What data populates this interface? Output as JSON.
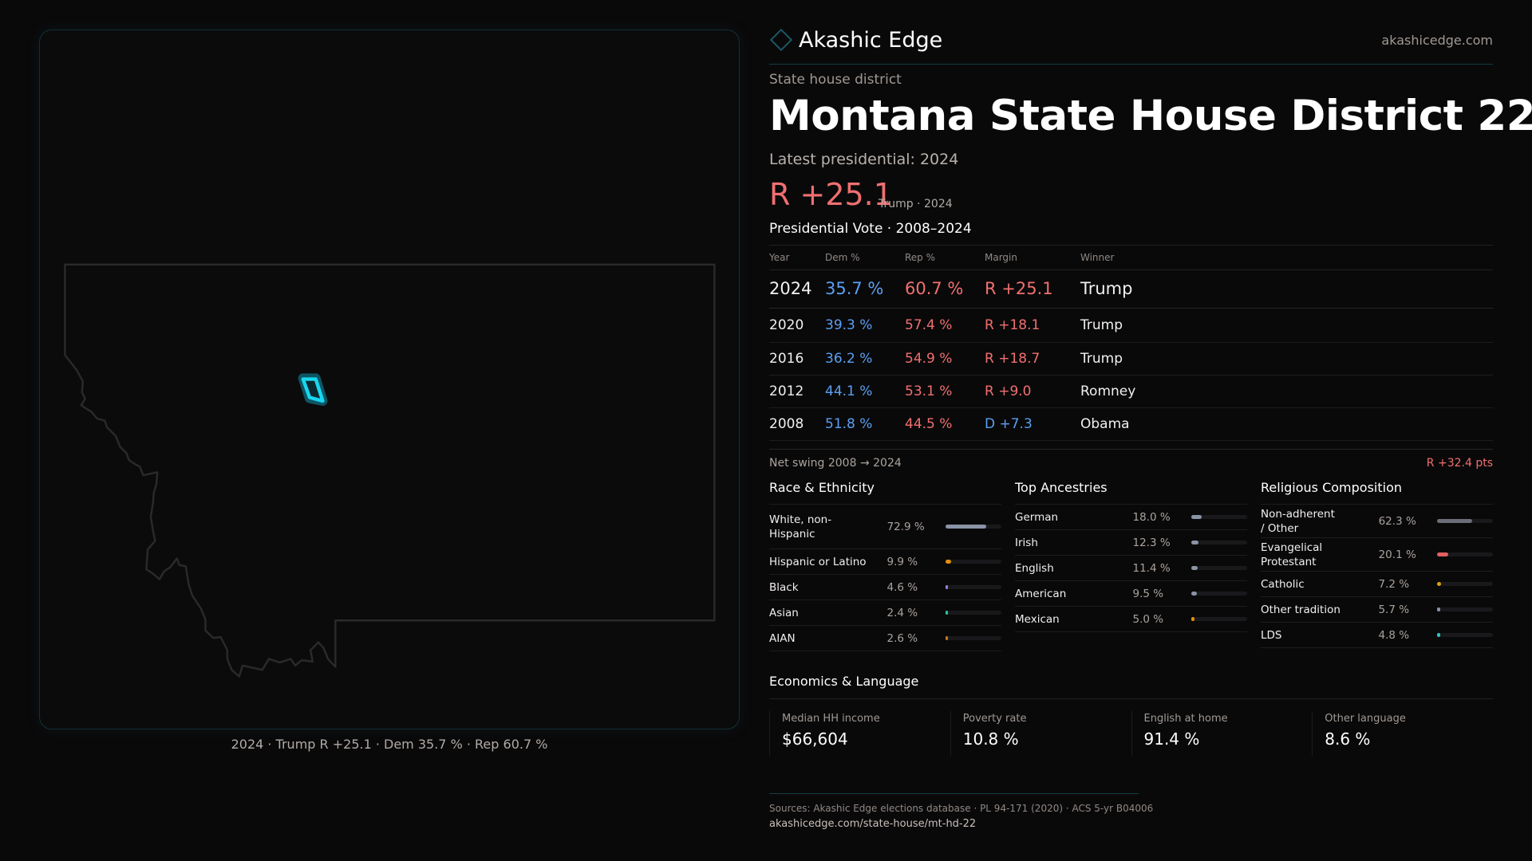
{
  "map": {
    "caption": "2024 · Trump R +25.1 · Dem 35.7 % · Rep 60.7 %",
    "highlight_color": "#19d6f0"
  },
  "header": {
    "brand": "Akashic Edge",
    "site": "akashicedge.com"
  },
  "district": {
    "kind": "State house district",
    "title": "Montana State House District 22",
    "latest": "Latest presidential: 2024",
    "margin": "R +25.1",
    "margin_sub": "Trump · 2024"
  },
  "colors": {
    "dem": "#5aa0f0",
    "rep": "#f07070",
    "accent": "#1b5863"
  },
  "vote": {
    "title": "Presidential Vote · 2008–2024",
    "headers": [
      "Year",
      "Dem %",
      "Rep %",
      "Margin",
      "Winner"
    ],
    "rows": [
      {
        "year": "2024",
        "dem": "35.7 %",
        "rep": "60.7 %",
        "margin": "R +25.1",
        "party": "rep",
        "winner": "Trump"
      },
      {
        "year": "2020",
        "dem": "39.3 %",
        "rep": "57.4 %",
        "margin": "R +18.1",
        "party": "rep",
        "winner": "Trump"
      },
      {
        "year": "2016",
        "dem": "36.2 %",
        "rep": "54.9 %",
        "margin": "R +18.7",
        "party": "rep",
        "winner": "Trump"
      },
      {
        "year": "2012",
        "dem": "44.1 %",
        "rep": "53.1 %",
        "margin": "R +9.0",
        "party": "rep",
        "winner": "Romney"
      },
      {
        "year": "2008",
        "dem": "51.8 %",
        "rep": "44.5 %",
        "margin": "D +7.3",
        "party": "dem",
        "winner": "Obama"
      }
    ],
    "swing_label": "Net swing 2008 → 2024",
    "swing_value": "R +32.4 pts"
  },
  "race": {
    "title": "Race & Ethnicity",
    "items": [
      {
        "label": "White, non-Hispanic",
        "value": "72.9 %",
        "pct": 72.9,
        "color": "#8a94a6"
      },
      {
        "label": "Hispanic or Latino",
        "value": "9.9 %",
        "pct": 9.9,
        "color": "#e0900a"
      },
      {
        "label": "Black",
        "value": "4.6 %",
        "pct": 4.6,
        "color": "#9b7fe0"
      },
      {
        "label": "Asian",
        "value": "2.4 %",
        "pct": 2.4,
        "color": "#2ec4a0"
      },
      {
        "label": "AIAN",
        "value": "2.6 %",
        "pct": 2.6,
        "color": "#c07a20"
      }
    ]
  },
  "ancestry": {
    "title": "Top Ancestries",
    "items": [
      {
        "label": "German",
        "value": "18.0 %",
        "pct": 18.0,
        "color": "#8a94a6"
      },
      {
        "label": "Irish",
        "value": "12.3 %",
        "pct": 12.3,
        "color": "#8a94a6"
      },
      {
        "label": "English",
        "value": "11.4 %",
        "pct": 11.4,
        "color": "#8a94a6"
      },
      {
        "label": "American",
        "value": "9.5 %",
        "pct": 9.5,
        "color": "#8a94a6"
      },
      {
        "label": "Mexican",
        "value": "5.0 %",
        "pct": 5.0,
        "color": "#e0900a"
      }
    ]
  },
  "religion": {
    "title": "Religious Composition",
    "items": [
      {
        "label": "Non-adherent / Other",
        "value": "62.3 %",
        "pct": 62.3,
        "color": "#6b6e78"
      },
      {
        "label": "Evangelical Protestant",
        "value": "20.1 %",
        "pct": 20.1,
        "color": "#e06060"
      },
      {
        "label": "Catholic",
        "value": "7.2 %",
        "pct": 7.2,
        "color": "#e0a010"
      },
      {
        "label": "Other tradition",
        "value": "5.7 %",
        "pct": 5.7,
        "color": "#8a94a6"
      },
      {
        "label": "LDS",
        "value": "4.8 %",
        "pct": 4.8,
        "color": "#2ec4c0"
      }
    ]
  },
  "economics": {
    "title": "Economics & Language",
    "cards": [
      {
        "label": "Median HH income",
        "value": "$66,604"
      },
      {
        "label": "Poverty rate",
        "value": "10.8 %"
      },
      {
        "label": "English at home",
        "value": "91.4 %"
      },
      {
        "label": "Other language",
        "value": "8.6 %"
      }
    ]
  },
  "footer": {
    "sources": "Sources: Akashic Edge elections database · PL 94-171 (2020) · ACS 5-yr B04006",
    "url": "akashicedge.com/state-house/mt-hd-22"
  }
}
